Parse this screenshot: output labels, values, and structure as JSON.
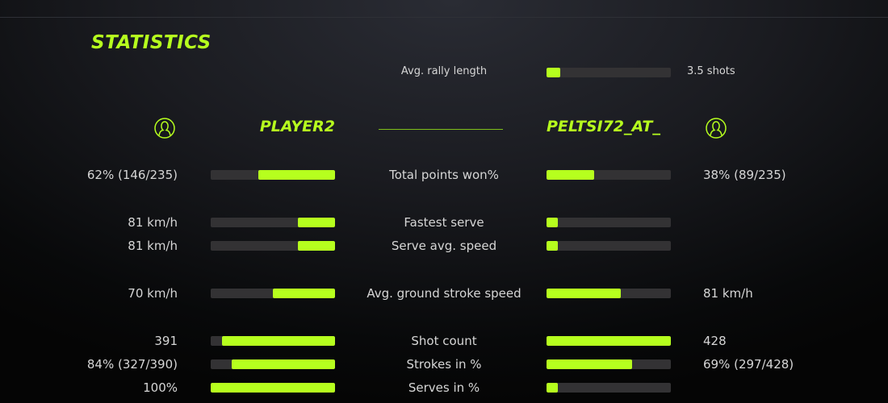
{
  "title": "STATISTICS",
  "accent_color": "#b6ff1e",
  "rally": {
    "label": "Avg. rally length",
    "value": "3.5 shots",
    "fraction": 0.11
  },
  "players": {
    "left": {
      "name": "PLAYER2",
      "icon": "user-circle-icon"
    },
    "right": {
      "name": "PELTSI72_AT_",
      "icon": "user-circle-icon"
    }
  },
  "rows": [
    {
      "label": "Total points won%",
      "left": "62% (146/235)",
      "right": "38% (89/235)",
      "left_fraction": 0.62,
      "right_fraction": 0.38
    },
    {
      "label": "Fastest serve",
      "left": "81 km/h",
      "right": "",
      "left_fraction": 0.3,
      "right_fraction": 0.09
    },
    {
      "label": "Serve avg. speed",
      "left": "81 km/h",
      "right": "",
      "left_fraction": 0.3,
      "right_fraction": 0.09
    },
    {
      "label": "Avg. ground stroke speed",
      "left": "70 km/h",
      "right": "81 km/h",
      "left_fraction": 0.5,
      "right_fraction": 0.6
    },
    {
      "label": "Shot count",
      "left": "391",
      "right": "428",
      "left_fraction": 0.91,
      "right_fraction": 1.0
    },
    {
      "label": "Strokes in %",
      "left": "84% (327/390)",
      "right": "69% (297/428)",
      "left_fraction": 0.83,
      "right_fraction": 0.69
    },
    {
      "label": "Serves in %",
      "left": "100%",
      "right": "",
      "left_fraction": 1.0,
      "right_fraction": 0.09
    }
  ]
}
